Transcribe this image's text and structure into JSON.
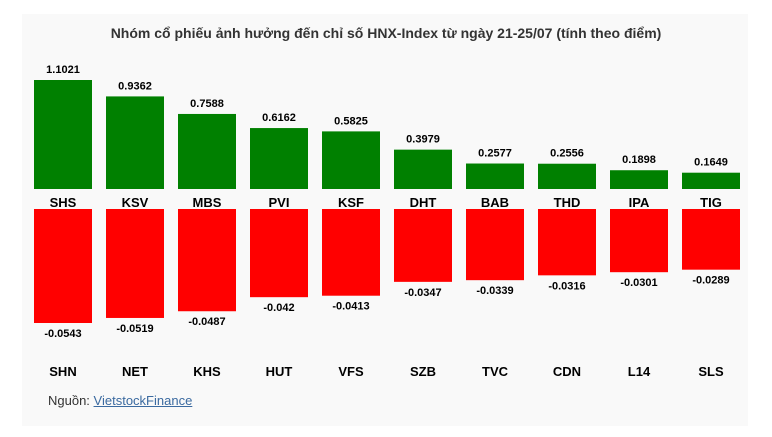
{
  "chart_data": {
    "type": "bar",
    "title": "Nhóm cổ phiếu ảnh hưởng đến chỉ số HNX-Index từ ngày 21-25/07 (tính theo điểm)",
    "series": [
      {
        "categories": [
          "SHS",
          "KSV",
          "MBS",
          "PVI",
          "KSF",
          "DHT",
          "BAB",
          "THD",
          "IPA",
          "TIG"
        ],
        "values": [
          1.1021,
          0.9362,
          0.7588,
          0.6162,
          0.5825,
          0.3979,
          0.2577,
          0.2556,
          0.1898,
          0.1649
        ],
        "labels": [
          "1.1021",
          "0.9362",
          "0.7588",
          "0.6162",
          "0.5825",
          "0.3979",
          "0.2577",
          "0.2556",
          "0.1898",
          "0.1649"
        ],
        "color": "#008000"
      },
      {
        "categories": [
          "SHN",
          "NET",
          "KHS",
          "HUT",
          "VFS",
          "SZB",
          "TVC",
          "CDN",
          "L14",
          "SLS"
        ],
        "values": [
          -0.0543,
          -0.0519,
          -0.0487,
          -0.042,
          -0.0413,
          -0.0347,
          -0.0339,
          -0.0316,
          -0.0301,
          -0.0289
        ],
        "labels": [
          "-0.0543",
          "-0.0519",
          "-0.0487",
          "-0.042",
          "-0.0413",
          "-0.0347",
          "-0.0339",
          "-0.0316",
          "-0.0301",
          "-0.0289"
        ],
        "color": "#ff0000"
      }
    ]
  },
  "source": {
    "prefix": "Nguồn: ",
    "link_text": "VietstockFinance"
  }
}
